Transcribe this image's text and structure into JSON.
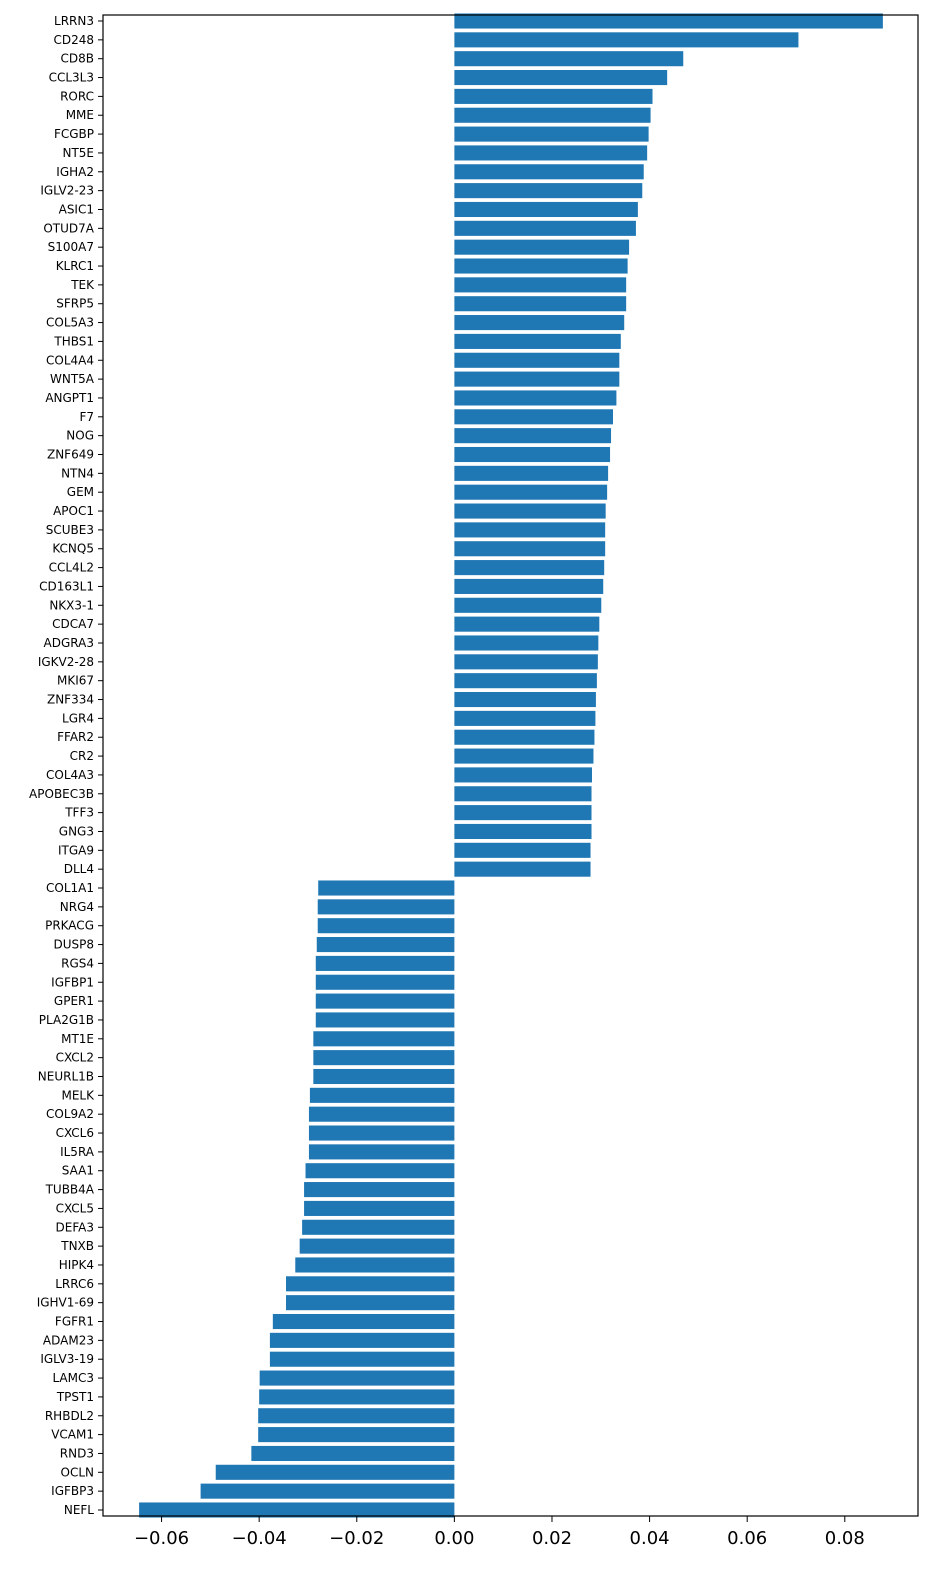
{
  "chart_data": {
    "type": "bar",
    "orientation": "horizontal",
    "bar_color": "#1f77b4",
    "title": "",
    "xlabel": "",
    "ylabel": "",
    "xlim": [
      -0.072,
      0.095
    ],
    "xticks": [
      -0.06,
      -0.04,
      -0.02,
      0.0,
      0.02,
      0.04,
      0.06,
      0.08
    ],
    "xtick_labels": [
      "−0.06",
      "−0.04",
      "−0.02",
      "0.00",
      "0.02",
      "0.04",
      "0.06",
      "0.08"
    ],
    "grid": false,
    "legend": "none",
    "categories": [
      "LRRN3",
      "CD248",
      "CD8B",
      "CCL3L3",
      "RORC",
      "MME",
      "FCGBP",
      "NT5E",
      "IGHA2",
      "IGLV2-23",
      "ASIC1",
      "OTUD7A",
      "S100A7",
      "KLRC1",
      "TEK",
      "SFRP5",
      "COL5A3",
      "THBS1",
      "COL4A4",
      "WNT5A",
      "ANGPT1",
      "F7",
      "NOG",
      "ZNF649",
      "NTN4",
      "GEM",
      "APOC1",
      "SCUBE3",
      "KCNQ5",
      "CCL4L2",
      "CD163L1",
      "NKX3-1",
      "CDCA7",
      "ADGRA3",
      "IGKV2-28",
      "MKI67",
      "ZNF334",
      "LGR4",
      "FFAR2",
      "CR2",
      "COL4A3",
      "APOBEC3B",
      "TFF3",
      "GNG3",
      "ITGA9",
      "DLL4",
      "COL1A1",
      "NRG4",
      "PRKACG",
      "DUSP8",
      "RGS4",
      "IGFBP1",
      "GPER1",
      "PLA2G1B",
      "MT1E",
      "CXCL2",
      "NEURL1B",
      "MELK",
      "COL9A2",
      "CXCL6",
      "IL5RA",
      "SAA1",
      "TUBB4A",
      "CXCL5",
      "DEFA3",
      "TNXB",
      "HIPK4",
      "LRRC6",
      "IGHV1-69",
      "FGFR1",
      "ADAM23",
      "IGLV3-19",
      "LAMC3",
      "TPST1",
      "RHBDL2",
      "VCAM1",
      "RND3",
      "OCLN",
      "IGFBP3",
      "NEFL"
    ],
    "values": [
      0.0878,
      0.0705,
      0.0469,
      0.0436,
      0.0406,
      0.0402,
      0.0398,
      0.0395,
      0.0388,
      0.0385,
      0.0376,
      0.0372,
      0.0358,
      0.0355,
      0.0352,
      0.0352,
      0.0348,
      0.0341,
      0.0338,
      0.0338,
      0.0332,
      0.0325,
      0.0321,
      0.0319,
      0.0315,
      0.0313,
      0.031,
      0.0309,
      0.0309,
      0.0307,
      0.0305,
      0.0301,
      0.0297,
      0.0295,
      0.0294,
      0.0292,
      0.029,
      0.0289,
      0.0287,
      0.0285,
      0.0282,
      0.0281,
      0.0281,
      0.0281,
      0.0279,
      0.0279,
      -0.0279,
      -0.028,
      -0.028,
      -0.0282,
      -0.0284,
      -0.0284,
      -0.0284,
      -0.0284,
      -0.0289,
      -0.0289,
      -0.0289,
      -0.0296,
      -0.0298,
      -0.0298,
      -0.0298,
      -0.0305,
      -0.0308,
      -0.0308,
      -0.0312,
      -0.0317,
      -0.0326,
      -0.0345,
      -0.0345,
      -0.0372,
      -0.0378,
      -0.0378,
      -0.0399,
      -0.04,
      -0.0402,
      -0.0402,
      -0.0416,
      -0.0489,
      -0.052,
      -0.0646
    ]
  }
}
